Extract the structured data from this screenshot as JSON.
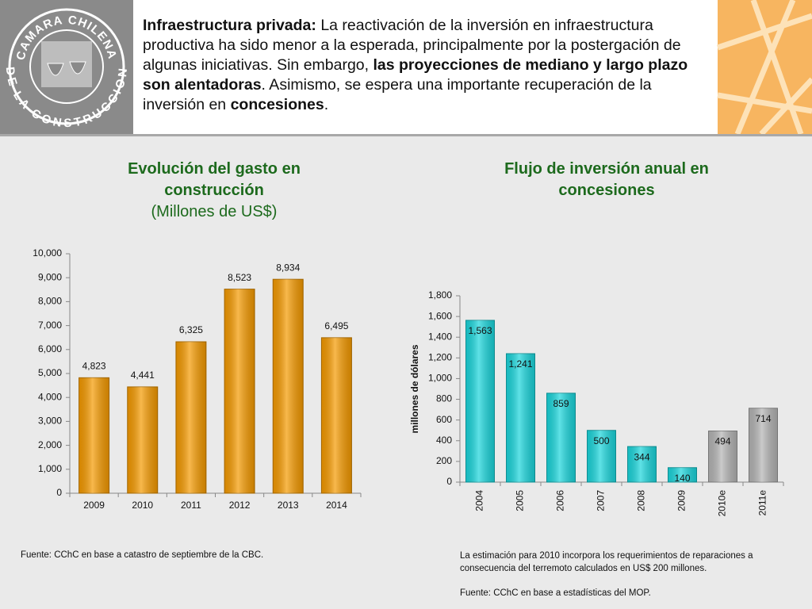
{
  "header": {
    "logo_top": "CAMARA CHILENA",
    "logo_bottom": "DE LA CONSTRUCCION",
    "paragraph": [
      {
        "text": "Infraestructura privada:",
        "bold": true
      },
      {
        "text": " La reactivación de la inversión en infraestructura productiva ha sido menor a la esperada, principalmente por la postergación de algunas iniciativas. Sin embargo, ",
        "bold": false
      },
      {
        "text": "las proyecciones de mediano y largo plazo son alentadoras",
        "bold": true
      },
      {
        "text": ". Asimismo, se espera una importante recuperación de la inversión en ",
        "bold": false
      },
      {
        "text": "concesiones",
        "bold": true
      },
      {
        "text": ".",
        "bold": false
      }
    ]
  },
  "chart_data": [
    {
      "type": "bar",
      "title": "Evolución del gasto en construcción",
      "subtitle": "(Millones de US$)",
      "categories": [
        "2009",
        "2010",
        "2011",
        "2012",
        "2013",
        "2014"
      ],
      "values": [
        4823,
        4441,
        6325,
        8523,
        8934,
        6495
      ],
      "value_labels": [
        "4,823",
        "4,441",
        "6,325",
        "8,523",
        "8,934",
        "6,495"
      ],
      "colors": [
        "#f59a00",
        "#f59a00",
        "#f59a00",
        "#f59a00",
        "#f59a00",
        "#f59a00"
      ],
      "ylim": [
        0,
        10000
      ],
      "yticks": [
        0,
        {
          "value": 1000,
          "label": "1,000"
        },
        {
          "value": 2000,
          "label": "2,000"
        },
        {
          "value": 3000,
          "label": "3,000"
        },
        {
          "value": 4000,
          "label": "4,000"
        },
        {
          "value": 5000,
          "label": "5,000"
        },
        {
          "value": 6000,
          "label": "6,000"
        },
        {
          "value": 7000,
          "label": "7,000"
        },
        {
          "value": 8000,
          "label": "8,000"
        },
        {
          "value": 9000,
          "label": "9,000"
        },
        {
          "value": 10000,
          "label": "10,000"
        }
      ],
      "label_position": "above",
      "rotate_categories": false
    },
    {
      "type": "bar",
      "title": "Flujo de inversión anual en concesiones",
      "ylabel": "millones de dólares",
      "categories": [
        "2004",
        "2005",
        "2006",
        "2007",
        "2008",
        "2009",
        "2010e",
        "2011e"
      ],
      "values": [
        1563,
        1241,
        859,
        500,
        344,
        140,
        494,
        714
      ],
      "value_labels": [
        "1,563",
        "1,241",
        "859",
        "500",
        "344",
        "140",
        "494",
        "714"
      ],
      "colors": [
        "#1ad6dc",
        "#1ad6dc",
        "#1ad6dc",
        "#1ad6dc",
        "#1ad6dc",
        "#1ad6dc",
        "#b4b4b4",
        "#b4b4b4"
      ],
      "ylim": [
        0,
        1800
      ],
      "yticks": [
        0,
        200,
        400,
        600,
        800,
        {
          "value": 1000,
          "label": "1,000"
        },
        {
          "value": 1200,
          "label": "1,200"
        },
        {
          "value": 1400,
          "label": "1,400"
        },
        {
          "value": 1600,
          "label": "1,600"
        },
        {
          "value": 1800,
          "label": "1,800"
        }
      ],
      "label_position": "inside",
      "rotate_categories": true
    }
  ],
  "footnotes": {
    "left": "Fuente: CChC en base a catastro de septiembre de la CBC.",
    "right": [
      "La estimación para 2010 incorpora los requerimientos de reparaciones a consecuencia del terremoto calculados en US$ 200 millones.",
      "Fuente: CChC en base a estadísticas del MOP."
    ]
  }
}
